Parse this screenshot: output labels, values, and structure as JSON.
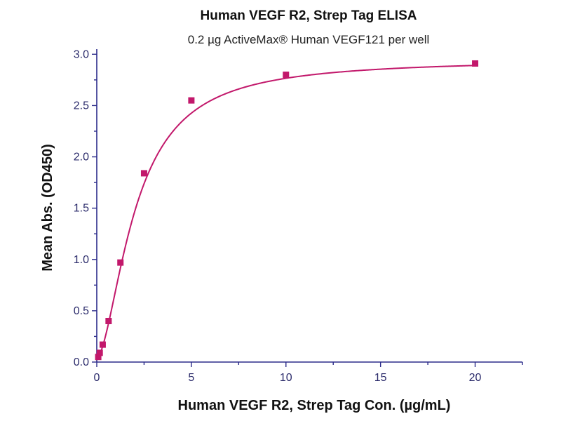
{
  "chart_data": {
    "type": "scatter",
    "title": "Human VEGF R2, Strep Tag ELISA",
    "subtitle": "0.2 µg ActiveMax® Human VEGF121 per well",
    "xlabel": "Human VEGF R2, Strep Tag Con. (µg/mL)",
    "ylabel": "Mean Abs. (OD450)",
    "xlim": [
      0,
      22.5
    ],
    "ylim": [
      0,
      3.05
    ],
    "xticks": [
      0,
      5,
      10,
      15,
      20
    ],
    "yticks": [
      0.0,
      0.5,
      1.0,
      1.5,
      2.0,
      2.5,
      3.0
    ],
    "xtick_labels": [
      "0",
      "5",
      "10",
      "15",
      "20"
    ],
    "ytick_labels": [
      "0.0",
      "0.5",
      "1.0",
      "1.5",
      "2.0",
      "2.5",
      "3.0"
    ],
    "grid": false,
    "series": [
      {
        "color": "#c2186b",
        "marker": "square",
        "x": [
          0.078,
          0.156,
          0.313,
          0.625,
          1.25,
          2.5,
          5,
          10,
          20
        ],
        "y": [
          0.05,
          0.09,
          0.17,
          0.4,
          0.97,
          1.84,
          2.55,
          2.8,
          2.91
        ]
      }
    ],
    "fit_curve": {
      "color": "#c2186b",
      "model": "four-parameter logistic",
      "bottom": 0.04,
      "top": 2.95,
      "ec50": 2.05,
      "hill": 1.7
    }
  }
}
